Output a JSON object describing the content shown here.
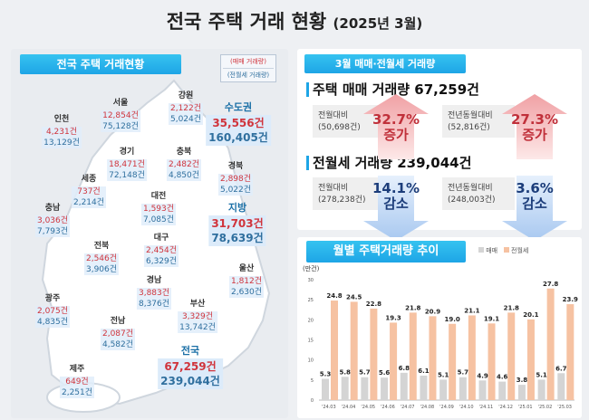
{
  "title": "전국 주택 거래 현황",
  "subtitle": "(2025년 3월)",
  "map_panel": {
    "header": "전국 주택 거래현황",
    "legend": {
      "sale": "(매매 거래량)",
      "rent": "(전월세 거래량)"
    },
    "regions": [
      {
        "name": "인천",
        "sale": "4,231건",
        "rent": "13,129건"
      },
      {
        "name": "서울",
        "sale": "12,854건",
        "rent": "75,128건"
      },
      {
        "name": "강원",
        "sale": "2,122건",
        "rent": "5,024건"
      },
      {
        "name": "경기",
        "sale": "18,471건",
        "rent": "72,148건"
      },
      {
        "name": "충북",
        "sale": "2,482건",
        "rent": "4,850건"
      },
      {
        "name": "경북",
        "sale": "2,898건",
        "rent": "5,022건"
      },
      {
        "name": "세종",
        "sale": "737건",
        "rent": "2,214건"
      },
      {
        "name": "대전",
        "sale": "1,593건",
        "rent": "7,085건"
      },
      {
        "name": "충남",
        "sale": "3,036건",
        "rent": "7,793건"
      },
      {
        "name": "대구",
        "sale": "2,454건",
        "rent": "6,329건"
      },
      {
        "name": "전북",
        "sale": "2,546건",
        "rent": "3,906건"
      },
      {
        "name": "울산",
        "sale": "1,812건",
        "rent": "2,630건"
      },
      {
        "name": "경남",
        "sale": "3,883건",
        "rent": "8,376건"
      },
      {
        "name": "부산",
        "sale": "3,329건",
        "rent": "13,742건"
      },
      {
        "name": "광주",
        "sale": "2,075건",
        "rent": "4,835건"
      },
      {
        "name": "전남",
        "sale": "2,087건",
        "rent": "4,582건"
      },
      {
        "name": "제주",
        "sale": "649건",
        "rent": "2,251건"
      }
    ],
    "totals": [
      {
        "name": "수도권",
        "sale": "35,556건",
        "rent": "160,405건"
      },
      {
        "name": "지방",
        "sale": "31,703건",
        "rent": "78,639건"
      },
      {
        "name": "전국",
        "sale": "67,259건",
        "rent": "239,044건"
      }
    ]
  },
  "summary": {
    "header": "3월 매매·전월세 거래량",
    "sale_title": "주택 매매 거래량 67,259건",
    "sale": [
      {
        "label": "전월대비",
        "base": "(50,698건)",
        "pct": "32.7%",
        "dir": "증가"
      },
      {
        "label": "전년동월대비",
        "base": "(52,816건)",
        "pct": "27.3%",
        "dir": "증가"
      }
    ],
    "rent_title": "전월세 거래량 239,044건",
    "rent": [
      {
        "label": "전월대비",
        "base": "(278,238건)",
        "pct": "14.1%",
        "dir": "감소"
      },
      {
        "label": "전년동월대비",
        "base": "(248,003건)",
        "pct": "3.6%",
        "dir": "감소"
      }
    ],
    "colors": {
      "up": "#c0303a",
      "down": "#1c3d7a"
    }
  },
  "chart_data": {
    "type": "bar",
    "title": "월별 주택거래량 추이",
    "ylabel": "(만건)",
    "ylim": [
      0,
      30
    ],
    "yticks": [
      0,
      5,
      10,
      15,
      20,
      25,
      30
    ],
    "categories": [
      "'24.03",
      "'24.04",
      "'24.05",
      "'24.06",
      "'24.07",
      "'24.08",
      "'24.09",
      "'24.10",
      "'24.11",
      "'24.12",
      "'25.01",
      "'25.02",
      "'25.03"
    ],
    "series": [
      {
        "name": "매매",
        "color": "#d4d4d4",
        "values": [
          5.3,
          5.8,
          5.7,
          5.6,
          6.8,
          6.1,
          5.1,
          5.7,
          4.9,
          4.6,
          3.8,
          5.1,
          6.7
        ]
      },
      {
        "name": "전월세",
        "color": "#f6c2a2",
        "values": [
          24.8,
          24.5,
          22.8,
          19.3,
          21.8,
          20.9,
          19.0,
          21.1,
          19.1,
          21.8,
          20.1,
          27.8,
          23.9
        ]
      }
    ],
    "legend": "top-right"
  }
}
